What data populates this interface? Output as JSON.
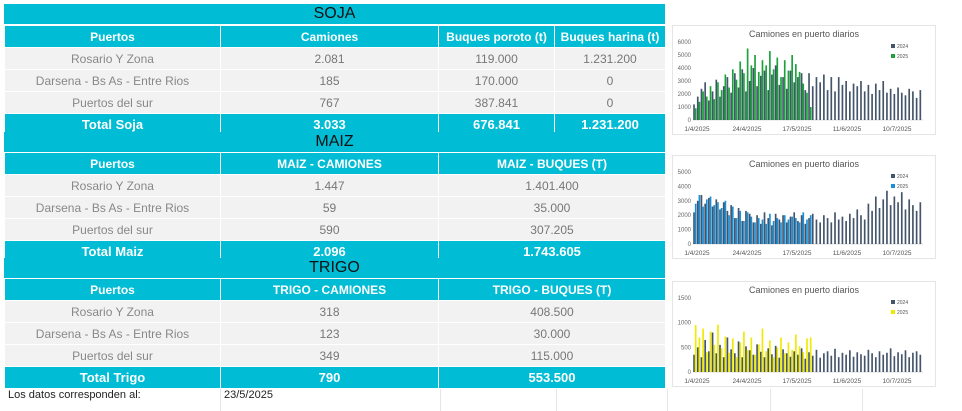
{
  "soja": {
    "title": "SOJA",
    "headers": [
      "Puertos",
      "Camiones",
      "Buques poroto (t)",
      "Buques harina (t)"
    ],
    "rows": [
      [
        "Rosario Y Zona",
        "2.081",
        "119.000",
        "1.231.200"
      ],
      [
        "Darsena - Bs As - Entre Rios",
        "185",
        "170.000",
        "0"
      ],
      [
        "Puertos del sur",
        "767",
        "387.841",
        "0"
      ]
    ],
    "total": [
      "Total Soja",
      "3.033",
      "676.841",
      "1.231.200"
    ]
  },
  "maiz": {
    "title": "MAIZ",
    "headers": [
      "Puertos",
      "MAIZ - CAMIONES",
      "MAIZ - BUQUES (T)"
    ],
    "rows": [
      [
        "Rosario Y Zona",
        "1.447",
        "1.401.400"
      ],
      [
        "Darsena - Bs As - Entre Rios",
        "59",
        "35.000"
      ],
      [
        "Puertos del sur",
        "590",
        "307.205"
      ]
    ],
    "total": [
      "Total Maiz",
      "2.096",
      "1.743.605"
    ]
  },
  "trigo": {
    "title": "TRIGO",
    "headers": [
      "Puertos",
      "TRIGO - CAMIONES",
      "TRIGO - BUQUES (T)"
    ],
    "rows": [
      [
        "Rosario Y Zona",
        "318",
        "408.500"
      ],
      [
        "Darsena - Bs As - Entre Rios",
        "123",
        "30.000"
      ],
      [
        "Puertos del sur",
        "349",
        "115.000"
      ]
    ],
    "total": [
      "Total Trigo",
      "790",
      "553.500"
    ]
  },
  "footer": {
    "label": "Los datos corresponden al:",
    "date": "23/5/2025"
  },
  "chart_data": [
    {
      "type": "bar",
      "title": "Camiones en puerto diarios",
      "ylim": [
        0,
        6000
      ],
      "yticks": [
        "6000",
        "5000",
        "4000",
        "3000",
        "2000",
        "1000",
        "0"
      ],
      "xticks": [
        "1/4/2025",
        "24/4/2025",
        "17/5/2025",
        "11/6/2025",
        "10/7/2025"
      ],
      "legend": [
        "2024",
        "2025"
      ],
      "colors": {
        "2024": "#44546a",
        "2025": "#1aa33a"
      },
      "series": [
        {
          "name": "2024",
          "values": [
            1200,
            1800,
            2400,
            2900,
            1500,
            2200,
            3100,
            1800,
            2600,
            3300,
            2100,
            3600,
            2500,
            3900,
            2200,
            3000,
            4000,
            2600,
            3400,
            3800,
            2300,
            3500,
            4200,
            2700,
            3300,
            2400,
            3800,
            2900,
            3300,
            3600,
            2300,
            3600,
            2600,
            3300,
            2900,
            3500,
            2300,
            3300,
            2200,
            3300,
            2700,
            3000,
            2200,
            2800,
            2600,
            3000,
            2200,
            2700,
            2000,
            2800,
            2300,
            3000,
            2100,
            2400,
            2000,
            2500,
            2100,
            1900,
            2400,
            2200,
            1700,
            2300
          ]
        },
        {
          "name": "2025",
          "values": [
            900,
            1400,
            2200,
            1800,
            2600,
            1600,
            2900,
            2300,
            3500,
            2500,
            3900,
            3100,
            4500,
            3600,
            5500,
            4200,
            5000,
            3700,
            4600,
            4200,
            5300,
            3900,
            4800,
            3300,
            4600,
            3800,
            5000,
            4300,
            3700,
            2800,
            2100,
            1000,
            0,
            0,
            0,
            0,
            0,
            0,
            0,
            0,
            0,
            0,
            0,
            0,
            0,
            0,
            0,
            0,
            0,
            0,
            0,
            0,
            0,
            0,
            0,
            0,
            0,
            0,
            0,
            0,
            0,
            0
          ]
        }
      ]
    },
    {
      "type": "bar",
      "title": "Camiones en puerto diarios",
      "ylim": [
        0,
        5000
      ],
      "yticks": [
        "5000",
        "4000",
        "3000",
        "2000",
        "1000",
        "0"
      ],
      "xticks": [
        "1/4/2025",
        "24/4/2025",
        "17/5/2025",
        "11/6/2025",
        "10/7/2025"
      ],
      "legend": [
        "2024",
        "2025"
      ],
      "colors": {
        "2024": "#44546a",
        "2025": "#1b8fd6"
      },
      "series": [
        {
          "name": "2024",
          "values": [
            2200,
            3000,
            3400,
            2800,
            3200,
            2600,
            3100,
            2400,
            2900,
            2300,
            2700,
            1800,
            2500,
            1600,
            2300,
            2100,
            1500,
            2000,
            1400,
            2200,
            1800,
            1300,
            2100,
            1700,
            2000,
            1500,
            1900,
            2200,
            1600,
            2000,
            1400,
            1800,
            2100,
            1700,
            1500,
            2000,
            1800,
            1500,
            2200,
            1700,
            1900,
            1600,
            2100,
            1800,
            2400,
            2000,
            1700,
            2800,
            2300,
            3300,
            2500,
            3100,
            3700,
            2700,
            3300,
            2900,
            3600,
            2400,
            3100,
            2700,
            2300,
            2900
          ]
        },
        {
          "name": "2025",
          "values": [
            2800,
            3400,
            2600,
            3100,
            3300,
            2700,
            2900,
            2500,
            3000,
            2000,
            2600,
            1800,
            2300,
            1600,
            2200,
            1900,
            1500,
            1800,
            1700,
            1400,
            2100,
            1600,
            1800,
            1500,
            2000,
            1700,
            1900,
            1800,
            1500,
            2200,
            1700,
            2000,
            0,
            0,
            0,
            0,
            0,
            0,
            0,
            0,
            0,
            0,
            0,
            0,
            0,
            0,
            0,
            0,
            0,
            0,
            0,
            0,
            0,
            0,
            0,
            0,
            0,
            0,
            0,
            0,
            0,
            0
          ]
        }
      ]
    },
    {
      "type": "bar",
      "title": "Camiones en puerto diarios",
      "ylim": [
        0,
        1500
      ],
      "yticks": [
        "1500",
        "1000",
        "500",
        "0"
      ],
      "xticks": [
        "1/4/2025",
        "24/4/2025",
        "17/5/2025",
        "11/6/2025",
        "10/7/2025"
      ],
      "legend": [
        "2024",
        "2025"
      ],
      "colors": {
        "2024": "#44546a",
        "2025": "#f0ea00"
      },
      "series": [
        {
          "name": "2024",
          "values": [
            350,
            500,
            300,
            650,
            420,
            800,
            380,
            550,
            300,
            700,
            460,
            380,
            620,
            300,
            520,
            440,
            350,
            560,
            410,
            300,
            480,
            360,
            530,
            290,
            460,
            380,
            310,
            420,
            350,
            480,
            270,
            400,
            330,
            450,
            290,
            380,
            420,
            330,
            470,
            300,
            390,
            350,
            440,
            310,
            400,
            360,
            330,
            450,
            380,
            300,
            420,
            350,
            390,
            480,
            320,
            400,
            360,
            440,
            300,
            390,
            420,
            350
          ]
        },
        {
          "name": "2025",
          "values": [
            950,
            700,
            880,
            400,
            820,
            550,
            960,
            480,
            720,
            390,
            680,
            300,
            600,
            820,
            450,
            700,
            350,
            560,
            880,
            420,
            640,
            300,
            500,
            700,
            380,
            600,
            450,
            760,
            520,
            400,
            680,
            700,
            0,
            0,
            0,
            0,
            0,
            0,
            0,
            0,
            0,
            0,
            0,
            0,
            0,
            0,
            0,
            0,
            0,
            0,
            0,
            0,
            0,
            0,
            0,
            0,
            0,
            0,
            0,
            0,
            0,
            0
          ]
        }
      ]
    }
  ]
}
